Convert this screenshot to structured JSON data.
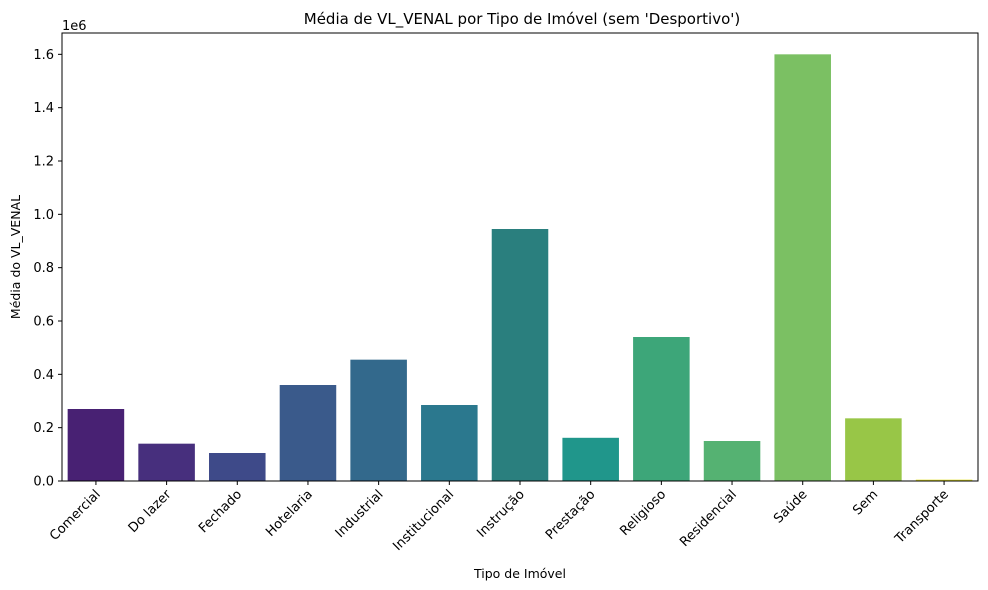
{
  "chart_data": {
    "type": "bar",
    "title": "Média de VL_VENAL por Tipo de Imóvel (sem 'Desportivo')",
    "xlabel": "Tipo de Imóvel",
    "ylabel": "Média do VL_VENAL",
    "y_offset_label": "1e6",
    "categories": [
      "Comercial",
      "Do lazer",
      "Fechado",
      "Hotelaria",
      "Industrial",
      "Institucional",
      "Instrução",
      "Prestação",
      "Religioso",
      "Residencial",
      "Saúde",
      "Sem",
      "Transporte"
    ],
    "values": [
      270000,
      140000,
      105000,
      360000,
      455000,
      285000,
      945000,
      162000,
      540000,
      150000,
      1600000,
      235000,
      5000
    ],
    "colors": [
      "#482173",
      "#472f7d",
      "#3e4a89",
      "#3a5a8b",
      "#33698c",
      "#2b788e",
      "#2a7f7e",
      "#20968b",
      "#3da679",
      "#55b272",
      "#7bc063",
      "#98c647",
      "#e4e127"
    ],
    "ylim": [
      0,
      1680000
    ],
    "yticks": [
      0,
      200000,
      400000,
      600000,
      800000,
      1000000,
      1200000,
      1400000,
      1600000
    ],
    "ytick_labels": [
      "0.0",
      "0.2",
      "0.4",
      "0.6",
      "0.8",
      "1.0",
      "1.2",
      "1.4",
      "1.6"
    ],
    "grid": false,
    "legend": "none"
  }
}
